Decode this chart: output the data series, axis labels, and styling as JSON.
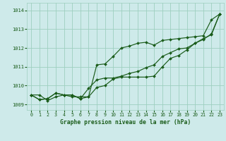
{
  "title": "Graphe pression niveau de la mer (hPa)",
  "bg_color": "#ceeaea",
  "grid_color": "#9ecfbf",
  "line_color": "#1a5c1a",
  "marker_color": "#1a5c1a",
  "xlim": [
    -0.5,
    23.5
  ],
  "ylim": [
    1008.7,
    1014.4
  ],
  "xticks": [
    0,
    1,
    2,
    3,
    4,
    5,
    6,
    7,
    8,
    9,
    10,
    11,
    12,
    13,
    14,
    15,
    16,
    17,
    18,
    19,
    20,
    21,
    22,
    23
  ],
  "yticks": [
    1009,
    1010,
    1011,
    1012,
    1013,
    1014
  ],
  "series1_x": [
    0,
    1,
    2,
    3,
    4,
    5,
    6,
    7,
    8,
    9,
    10,
    11,
    12,
    13,
    14,
    15,
    16,
    17,
    18,
    19,
    20,
    21,
    22,
    23
  ],
  "series1": [
    1009.5,
    1009.5,
    1009.2,
    1009.4,
    1009.5,
    1009.4,
    1009.4,
    1009.4,
    1011.1,
    1011.15,
    1011.55,
    1012.0,
    1012.1,
    1012.25,
    1012.3,
    1012.15,
    1012.4,
    1012.45,
    1012.5,
    1012.55,
    1012.6,
    1012.65,
    1013.5,
    1013.8
  ],
  "series2_x": [
    0,
    1,
    2,
    3,
    4,
    5,
    6,
    7,
    8,
    9,
    10,
    11,
    12,
    13,
    14,
    15,
    16,
    17,
    18,
    19,
    20,
    21,
    22,
    23
  ],
  "series2": [
    1009.5,
    1009.25,
    1009.3,
    1009.6,
    1009.5,
    1009.5,
    1009.3,
    1009.4,
    1009.9,
    1010.0,
    1010.35,
    1010.45,
    1010.45,
    1010.45,
    1010.45,
    1010.5,
    1011.0,
    1011.45,
    1011.6,
    1011.9,
    1012.25,
    1012.5,
    1012.7,
    1013.8
  ],
  "series3_x": [
    0,
    1,
    2,
    3,
    4,
    5,
    6,
    7,
    8,
    9,
    10,
    11,
    12,
    13,
    14,
    15,
    16,
    17,
    18,
    19,
    20,
    21,
    22,
    23
  ],
  "series3": [
    1009.5,
    1009.25,
    1009.3,
    1009.6,
    1009.5,
    1009.5,
    1009.3,
    1009.85,
    1010.3,
    1010.4,
    1010.4,
    1010.5,
    1010.65,
    1010.75,
    1010.95,
    1011.1,
    1011.55,
    1011.75,
    1011.95,
    1012.0,
    1012.25,
    1012.45,
    1012.75,
    1013.8
  ]
}
